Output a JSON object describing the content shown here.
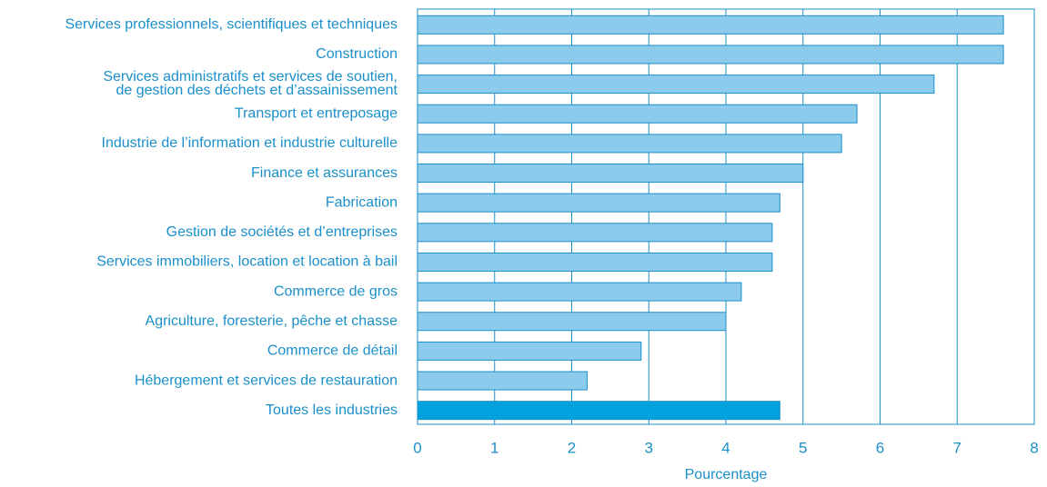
{
  "chart_data": {
    "type": "barh",
    "categories": [
      "Services professionnels, scientifiques et techniques",
      "Construction",
      "Services administratifs et services de soutien,\nde gestion des déchets et d’assainissement",
      "Transport et entreposage",
      "Industrie de l’information et industrie culturelle",
      "Finance et assurances",
      "Fabrication",
      "Gestion de sociétés et d’entreprises",
      "Services immobiliers, location et location à bail",
      "Commerce de gros",
      "Agriculture,  foresterie, pêche et chasse",
      "Commerce de détail",
      "Hébergement et services de restauration",
      "Toutes les industries"
    ],
    "values": [
      7.6,
      7.6,
      6.7,
      5.7,
      5.5,
      5.0,
      4.7,
      4.6,
      4.6,
      4.2,
      4.0,
      2.9,
      2.2,
      4.7
    ],
    "colors": [
      "#8ccbec",
      "#8ccbec",
      "#8ccbec",
      "#8ccbec",
      "#8ccbec",
      "#8ccbec",
      "#8ccbec",
      "#8ccbec",
      "#8ccbec",
      "#8ccbec",
      "#8ccbec",
      "#8ccbec",
      "#8ccbec",
      "#00a1dc"
    ],
    "xlabel": "Pourcentage",
    "xlim": [
      0,
      8
    ],
    "xticks": [
      0,
      1,
      2,
      3,
      4,
      5,
      6,
      7,
      8
    ],
    "grid": true
  }
}
